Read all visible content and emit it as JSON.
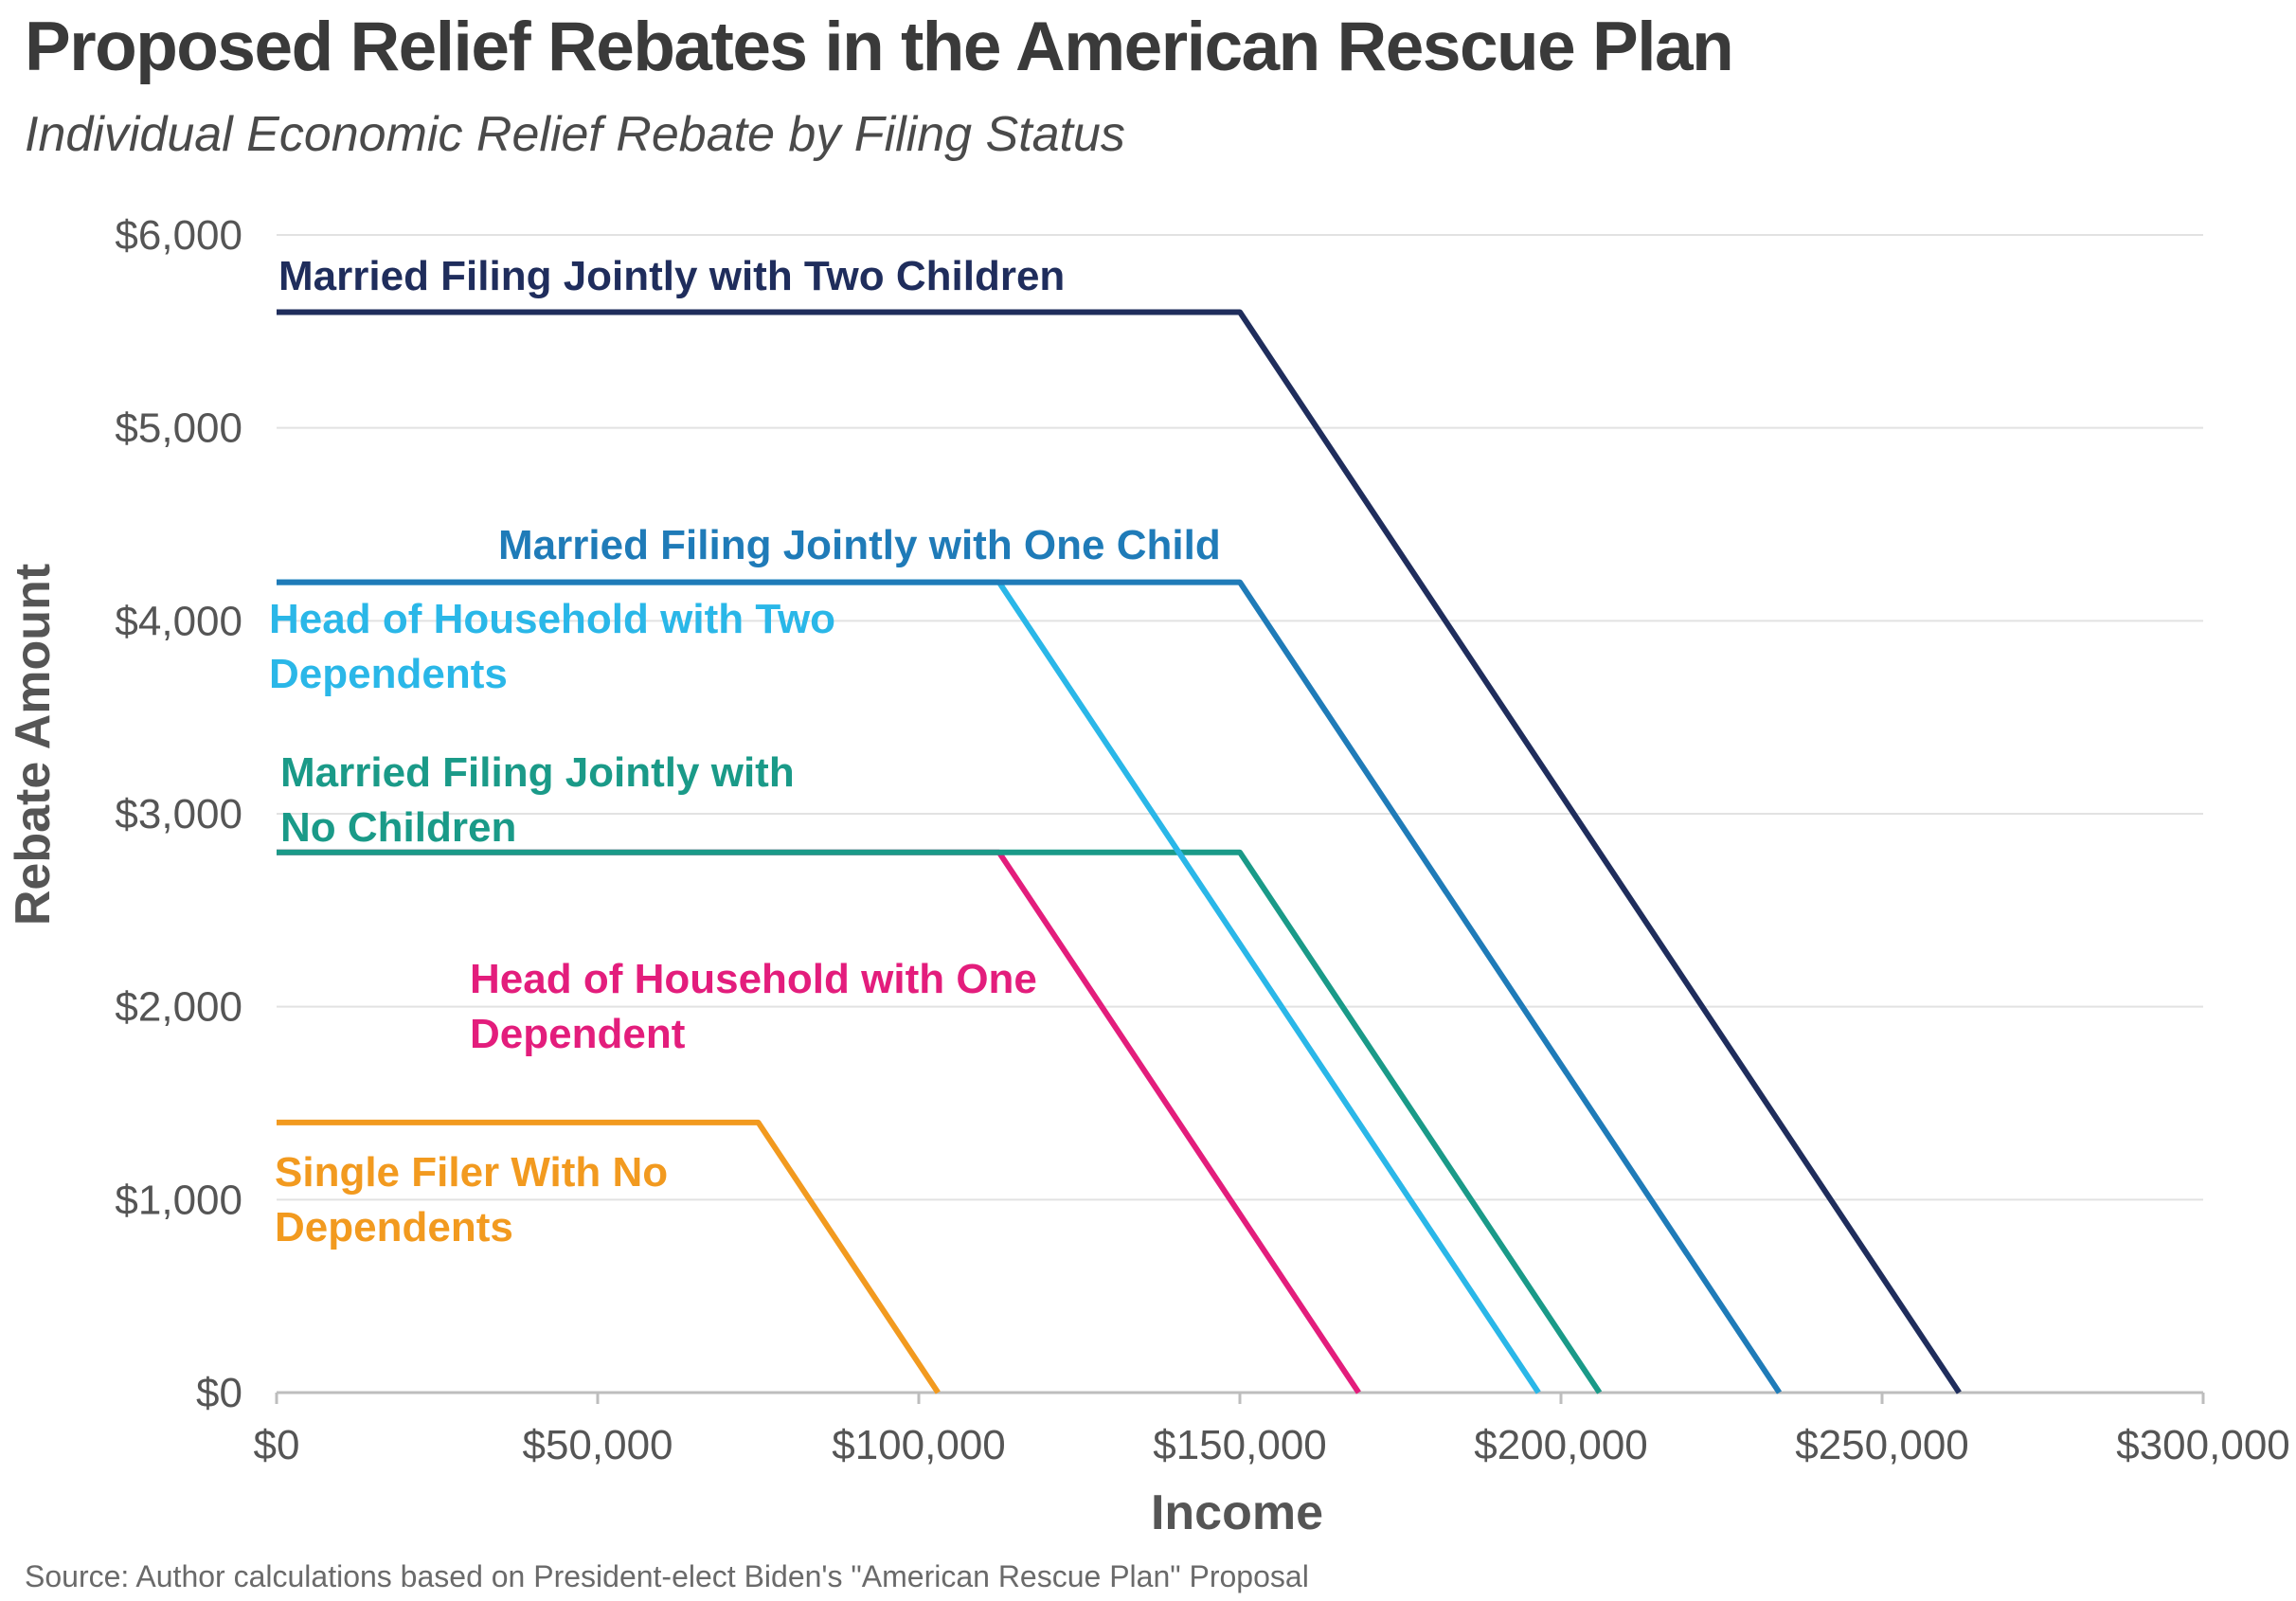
{
  "title": "Proposed Relief Rebates in the American Rescue Plan",
  "subtitle": "Individual Economic Relief Rebate by Filing Status",
  "source": "Source: Author calculations based on President-elect Biden's \"American Rescue Plan\" Proposal",
  "chart_data": {
    "type": "line",
    "title": "Proposed Relief Rebates in the American Rescue Plan",
    "subtitle": "Individual Economic Relief Rebate by Filing Status",
    "xlabel": "Income",
    "ylabel": "Rebate Amount",
    "xlim": [
      0,
      300000
    ],
    "ylim": [
      0,
      6000
    ],
    "grid": true,
    "x_ticks": [
      0,
      50000,
      100000,
      150000,
      200000,
      250000,
      300000
    ],
    "x_tick_labels": [
      "$0",
      "$50,000",
      "$100,000",
      "$150,000",
      "$200,000",
      "$250,000",
      "$300,000"
    ],
    "y_ticks": [
      0,
      1000,
      2000,
      3000,
      4000,
      5000,
      6000
    ],
    "y_tick_labels": [
      "$0",
      "$1,000",
      "$2,000",
      "$3,000",
      "$4,000",
      "$5,000",
      "$6,000"
    ],
    "series": [
      {
        "name": "Married Filing Jointly with Two Children",
        "label_lines": [
          "Married Filing Jointly with Two Children"
        ],
        "color": "#1f2d5c",
        "points": [
          [
            0,
            5600
          ],
          [
            150000,
            5600
          ],
          [
            262000,
            0
          ]
        ]
      },
      {
        "name": "Married Filing Jointly with One Child",
        "label_lines": [
          "Married Filing Jointly with One Child"
        ],
        "color": "#1f7bb8",
        "points": [
          [
            0,
            4200
          ],
          [
            150000,
            4200
          ],
          [
            234000,
            0
          ]
        ]
      },
      {
        "name": "Head of Household with Two Dependents",
        "label_lines": [
          "Head of Household with Two",
          "Dependents"
        ],
        "color": "#2ab7e8",
        "points": [
          [
            0,
            4200
          ],
          [
            112500,
            4200
          ],
          [
            196500,
            0
          ]
        ]
      },
      {
        "name": "Married Filing Jointly with No Children",
        "label_lines": [
          "Married Filing Jointly with",
          "No Children"
        ],
        "color": "#1a9a88",
        "points": [
          [
            0,
            2800
          ],
          [
            150000,
            2800
          ],
          [
            206000,
            0
          ]
        ]
      },
      {
        "name": "Head of Household with One Dependent",
        "label_lines": [
          "Head of Household with One",
          "Dependent"
        ],
        "color": "#e31d7c",
        "points": [
          [
            0,
            2800
          ],
          [
            112500,
            2800
          ],
          [
            168500,
            0
          ]
        ]
      },
      {
        "name": "Single Filer With No Dependents",
        "label_lines": [
          "Single Filer With No",
          "Dependents"
        ],
        "color": "#f29a1f",
        "points": [
          [
            0,
            1400
          ],
          [
            75000,
            1400
          ],
          [
            103000,
            0
          ]
        ]
      }
    ]
  }
}
